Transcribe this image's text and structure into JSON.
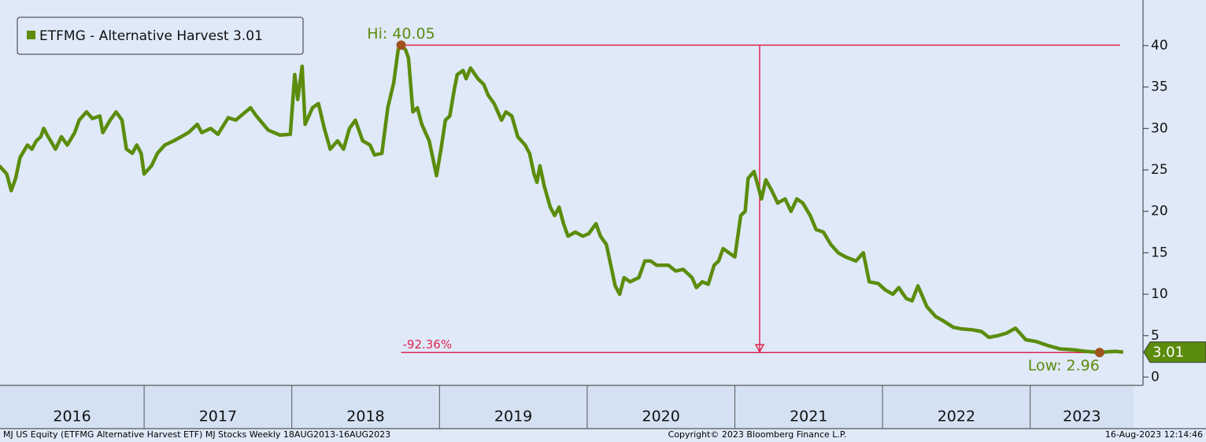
{
  "chart_data": {
    "type": "line",
    "series": [
      {
        "name": "ETFMG - Alternative Harvest 3.01",
        "color": "#5b8c0c",
        "x": [
          2016.02,
          2016.07,
          2016.1,
          2016.13,
          2016.16,
          2016.21,
          2016.24,
          2016.27,
          2016.3,
          2016.32,
          2016.35,
          2016.4,
          2016.44,
          2016.48,
          2016.53,
          2016.56,
          2016.61,
          2016.65,
          2016.7,
          2016.72,
          2016.77,
          2016.81,
          2016.85,
          2016.88,
          2016.92,
          2016.95,
          2016.98,
          2017.0,
          2017.05,
          2017.09,
          2017.14,
          2017.2,
          2017.25,
          2017.3,
          2017.36,
          2017.39,
          2017.45,
          2017.5,
          2017.57,
          2017.62,
          2017.72,
          2017.76,
          2017.84,
          2017.92,
          2017.99,
          2018.02,
          2018.04,
          2018.07,
          2018.09,
          2018.14,
          2018.18,
          2018.22,
          2018.26,
          2018.31,
          2018.35,
          2018.39,
          2018.43,
          2018.48,
          2018.53,
          2018.56,
          2018.61,
          2018.65,
          2018.69,
          2018.72,
          2018.74,
          2018.77,
          2018.79,
          2018.82,
          2018.85,
          2018.88,
          2018.93,
          2018.96,
          2018.98,
          2019.01,
          2019.04,
          2019.07,
          2019.1,
          2019.12,
          2019.16,
          2019.18,
          2019.21,
          2019.26,
          2019.3,
          2019.33,
          2019.37,
          2019.42,
          2019.45,
          2019.49,
          2019.53,
          2019.58,
          2019.61,
          2019.64,
          2019.66,
          2019.68,
          2019.71,
          2019.75,
          2019.78,
          2019.81,
          2019.84,
          2019.87,
          2019.92,
          2019.97,
          2020.01,
          2020.06,
          2020.09,
          2020.13,
          2020.16,
          2020.19,
          2020.22,
          2020.25,
          2020.29,
          2020.35,
          2020.39,
          2020.43,
          2020.47,
          2020.55,
          2020.6,
          2020.65,
          2020.71,
          2020.74,
          2020.78,
          2020.82,
          2020.86,
          2020.89,
          2020.92,
          2020.96,
          2021.0,
          2021.04,
          2021.07,
          2021.09,
          2021.13,
          2021.18,
          2021.21,
          2021.25,
          2021.29,
          2021.34,
          2021.38,
          2021.42,
          2021.46,
          2021.51,
          2021.55,
          2021.6,
          2021.65,
          2021.7,
          2021.75,
          2021.82,
          2021.87,
          2021.91,
          2021.97,
          2022.02,
          2022.07,
          2022.11,
          2022.16,
          2022.2,
          2022.24,
          2022.3,
          2022.36,
          2022.41,
          2022.48,
          2022.54,
          2022.61,
          2022.67,
          2022.72,
          2022.78,
          2022.84,
          2022.9,
          2022.97,
          2023.04,
          2023.12,
          2023.2,
          2023.29,
          2023.38,
          2023.47,
          2023.52,
          2023.58,
          2023.63
        ],
        "values": [
          25.5,
          24.5,
          22.5,
          24,
          26.5,
          28,
          27.5,
          28.5,
          29,
          30,
          29,
          27.5,
          29,
          28,
          29.5,
          31,
          32,
          31.2,
          31.5,
          29.5,
          31,
          32,
          31,
          27.5,
          27,
          28,
          27,
          24.5,
          25.5,
          27,
          28,
          28.5,
          29,
          29.5,
          30.5,
          29.5,
          30,
          29.3,
          31.3,
          31,
          32.5,
          31.5,
          29.8,
          29.2,
          29.3,
          36.5,
          33.5,
          37.5,
          30.5,
          32.5,
          33,
          30,
          27.5,
          28.5,
          27.5,
          30,
          31,
          28.5,
          28,
          26.8,
          27,
          32.5,
          35.5,
          39.5,
          40.05,
          39.5,
          38.5,
          32,
          32.5,
          30.5,
          28.5,
          26,
          24.3,
          27.5,
          31,
          31.5,
          34.7,
          36.5,
          37,
          36,
          37.3,
          36,
          35.3,
          34,
          33,
          31,
          32,
          31.5,
          29,
          28,
          27,
          24.5,
          23.5,
          25.5,
          23,
          20.5,
          19.5,
          20.5,
          18.5,
          17,
          17.5,
          17,
          17.3,
          18.5,
          17,
          16,
          13.5,
          11,
          10,
          12,
          11.5,
          12,
          14,
          14,
          13.5,
          13.5,
          12.8,
          13,
          12,
          10.8,
          11.5,
          11.2,
          13.5,
          14,
          15.5,
          15,
          14.5,
          19.5,
          20,
          24,
          24.8,
          21.5,
          23.8,
          22.5,
          21,
          21.5,
          20,
          21.5,
          21,
          19.5,
          17.8,
          17.5,
          16,
          15,
          14.5,
          14,
          15,
          11.5,
          11.3,
          10.5,
          10,
          10.8,
          9.5,
          9.2,
          11,
          8.5,
          7.3,
          6.8,
          6,
          5.8,
          5.7,
          5.5,
          4.8,
          5,
          5.3,
          5.9,
          4.5,
          4.3,
          3.8,
          3.4,
          3.3,
          3.1,
          2.96,
          3.05,
          3.1,
          3.01
        ]
      }
    ],
    "xlim": [
      2016.024,
      2023.7
    ],
    "xticks": [
      2017,
      2018,
      2019,
      2020,
      2021,
      2022,
      2023
    ],
    "period_labels": [
      "2016",
      "2017",
      "2018",
      "2019",
      "2020",
      "2021",
      "2022",
      "2023"
    ],
    "ylim": [
      -1,
      45.5
    ],
    "yticks": [
      0,
      5,
      10,
      15,
      20,
      25,
      30,
      35,
      40
    ],
    "annotations": {
      "high": {
        "x": 2018.74,
        "y": 40.05,
        "label": "Hi: 40.05"
      },
      "low": {
        "x": 2023.47,
        "y": 2.96,
        "label": "Low: 2.96"
      },
      "change_label": "-92.36%",
      "color": "#e0254f"
    },
    "footer": {
      "left": "MJ US Equity (ETFMG Alternative Harvest ETF) MJ Stocks  Weekly 18AUG2013-16AUG2023",
      "center": "Copyright© 2023 Bloomberg Finance L.P.",
      "right": "16-Aug-2023 12:14:46"
    }
  }
}
